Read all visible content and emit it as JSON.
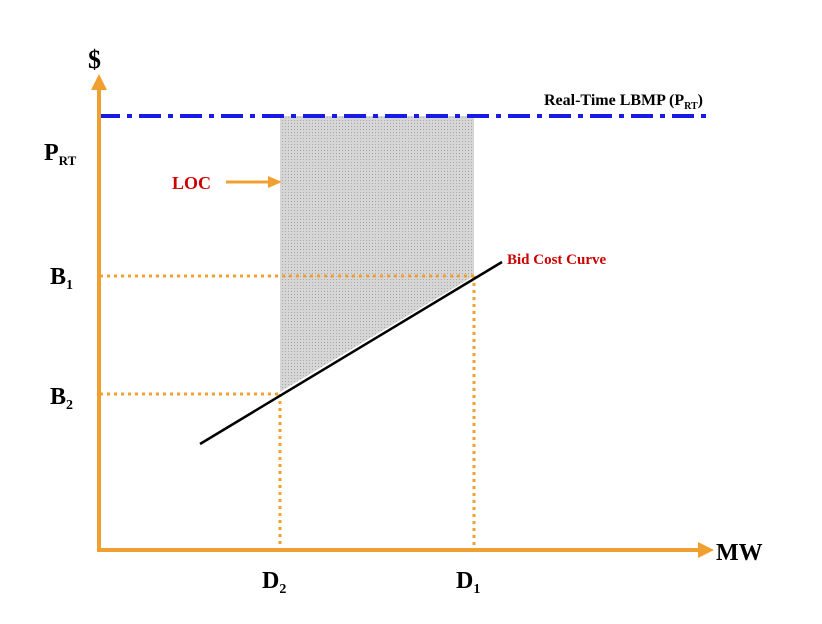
{
  "axes": {
    "y_label": "$",
    "x_label": "MW"
  },
  "y_ticks": {
    "prt": {
      "base": "P",
      "sub": "RT"
    },
    "b1": {
      "base": "B",
      "sub": "1"
    },
    "b2": {
      "base": "B",
      "sub": "2"
    }
  },
  "x_ticks": {
    "d2": {
      "base": "D",
      "sub": "2"
    },
    "d1": {
      "base": "D",
      "sub": "1"
    }
  },
  "annotations": {
    "real_time_lbmp": {
      "text": "Real-Time LBMP (P",
      "sub": "RT",
      "close": ")"
    },
    "loc": "LOC",
    "bid_cost_curve": "Bid Cost Curve"
  },
  "colors": {
    "axis": "#F0A030",
    "guide": "#F0A030",
    "lbmp_line": "#1A1AE6",
    "label_red": "#CC0000",
    "curve": "#000000",
    "shade": "#C8C8C8"
  }
}
